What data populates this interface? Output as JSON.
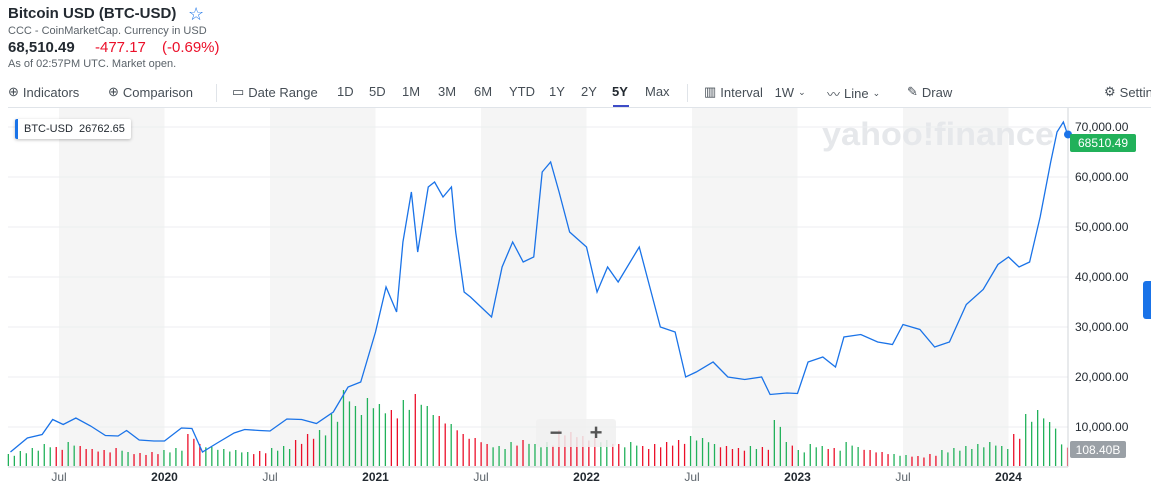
{
  "header": {
    "title": "Bitcoin USD (BTC-USD)",
    "source": "CCC - CoinMarketCap. Currency in USD",
    "price": "68,510.49",
    "change": "-477.17",
    "change_pct": "(-0.69%)",
    "as_of": "As of 02:57PM UTC. Market open."
  },
  "toolbar": {
    "indicators": "Indicators",
    "comparison": "Comparison",
    "date_range": "Date Range",
    "ranges": [
      "1D",
      "5D",
      "1M",
      "3M",
      "6M",
      "YTD",
      "1Y",
      "2Y",
      "5Y",
      "Max"
    ],
    "active_range": "5Y",
    "interval_label": "Interval",
    "interval_value": "1W",
    "chart_type": "Line",
    "draw": "Draw",
    "settings": "Settings"
  },
  "legend": {
    "symbol": "BTC-USD",
    "value": "26762.65"
  },
  "watermark": "yahoo!finance",
  "zoom": {
    "minus": "−",
    "plus": "+"
  },
  "colors": {
    "line": "#1a73e8",
    "up": "#21b15a",
    "down": "#eb0f29",
    "last": "#21b15a",
    "volume_label_bg": "#9aa0a6"
  },
  "chart_data": {
    "type": "line",
    "title": "Bitcoin USD (BTC-USD)",
    "xlabel": "",
    "ylabel": "",
    "ylim": [
      0,
      70000
    ],
    "yticks": [
      "70,000.00",
      "60,000.00",
      "50,000.00",
      "40,000.00",
      "30,000.00",
      "20,000.00",
      "10,000.00"
    ],
    "ytick_values": [
      70000,
      60000,
      50000,
      40000,
      30000,
      20000,
      10000
    ],
    "xticks": [
      "Jul",
      "2020",
      "Jul",
      "2021",
      "Jul",
      "2022",
      "Jul",
      "2023",
      "Jul",
      "2024"
    ],
    "xtick_values": [
      2019.5,
      2020,
      2020.5,
      2021,
      2021.5,
      2022,
      2022.5,
      2023,
      2023.5,
      2024
    ],
    "xlim": [
      2019.26,
      2024.28
    ],
    "last_price_label": "68510.49",
    "volume_label": "108.40B",
    "series": [
      {
        "name": "BTC-USD",
        "x": [
          2019.27,
          2019.35,
          2019.42,
          2019.47,
          2019.52,
          2019.58,
          2019.65,
          2019.72,
          2019.78,
          2019.82,
          2019.88,
          2019.95,
          2020.0,
          2020.08,
          2020.13,
          2020.18,
          2020.25,
          2020.33,
          2020.38,
          2020.45,
          2020.5,
          2020.58,
          2020.65,
          2020.72,
          2020.8,
          2020.87,
          2020.93,
          2021.0,
          2021.05,
          2021.1,
          2021.13,
          2021.17,
          2021.2,
          2021.25,
          2021.28,
          2021.32,
          2021.36,
          2021.38,
          2021.42,
          2021.45,
          2021.5,
          2021.55,
          2021.6,
          2021.65,
          2021.7,
          2021.75,
          2021.79,
          2021.83,
          2021.87,
          2021.92,
          2022.0,
          2022.05,
          2022.1,
          2022.15,
          2022.25,
          2022.3,
          2022.35,
          2022.42,
          2022.47,
          2022.52,
          2022.6,
          2022.67,
          2022.75,
          2022.83,
          2022.87,
          2022.95,
          2023.0,
          2023.05,
          2023.12,
          2023.18,
          2023.22,
          2023.3,
          2023.38,
          2023.45,
          2023.5,
          2023.58,
          2023.65,
          2023.72,
          2023.8,
          2023.88,
          2023.95,
          2024.0,
          2024.05,
          2024.1,
          2024.15,
          2024.2,
          2024.23,
          2024.26,
          2024.28
        ],
        "y": [
          5000,
          7800,
          8500,
          11500,
          10500,
          11800,
          10200,
          8300,
          8200,
          9300,
          7400,
          7200,
          7200,
          9800,
          9700,
          5000,
          6800,
          8800,
          9500,
          9300,
          9200,
          11600,
          11500,
          10700,
          13000,
          18000,
          19000,
          29000,
          38000,
          33000,
          47000,
          57000,
          45000,
          58000,
          59000,
          56000,
          58000,
          49000,
          37000,
          36000,
          34000,
          32000,
          42000,
          47000,
          43000,
          44000,
          61000,
          63000,
          57000,
          49000,
          46000,
          37000,
          42000,
          39000,
          46000,
          38000,
          30000,
          29000,
          20000,
          21000,
          23000,
          20000,
          19500,
          20000,
          16500,
          16800,
          16700,
          23000,
          24000,
          22000,
          28000,
          28500,
          27000,
          26500,
          30500,
          29500,
          26000,
          27000,
          34500,
          37500,
          42500,
          44000,
          42000,
          43000,
          52000,
          63000,
          69000,
          71000,
          68510
        ]
      }
    ],
    "volume_billions": [
      60,
      75,
      90,
      110,
      95,
      120,
      100,
      85,
      80,
      90,
      70,
      65,
      70,
      80,
      90,
      160,
      110,
      95,
      85,
      80,
      70,
      75,
      90,
      100,
      130,
      160,
      180,
      260,
      380,
      300,
      340,
      310,
      280,
      330,
      360,
      300,
      250,
      210,
      160,
      140,
      110,
      100,
      120,
      130,
      110,
      120,
      180,
      170,
      150,
      140,
      130,
      110,
      120,
      100,
      110,
      120,
      130,
      150,
      140,
      110,
      100,
      90,
      100,
      95,
      230,
      120,
      80,
      110,
      100,
      90,
      120,
      95,
      80,
      70,
      60,
      55,
      50,
      60,
      80,
      90,
      100,
      110,
      120,
      100,
      160,
      260,
      280,
      220,
      108
    ]
  }
}
